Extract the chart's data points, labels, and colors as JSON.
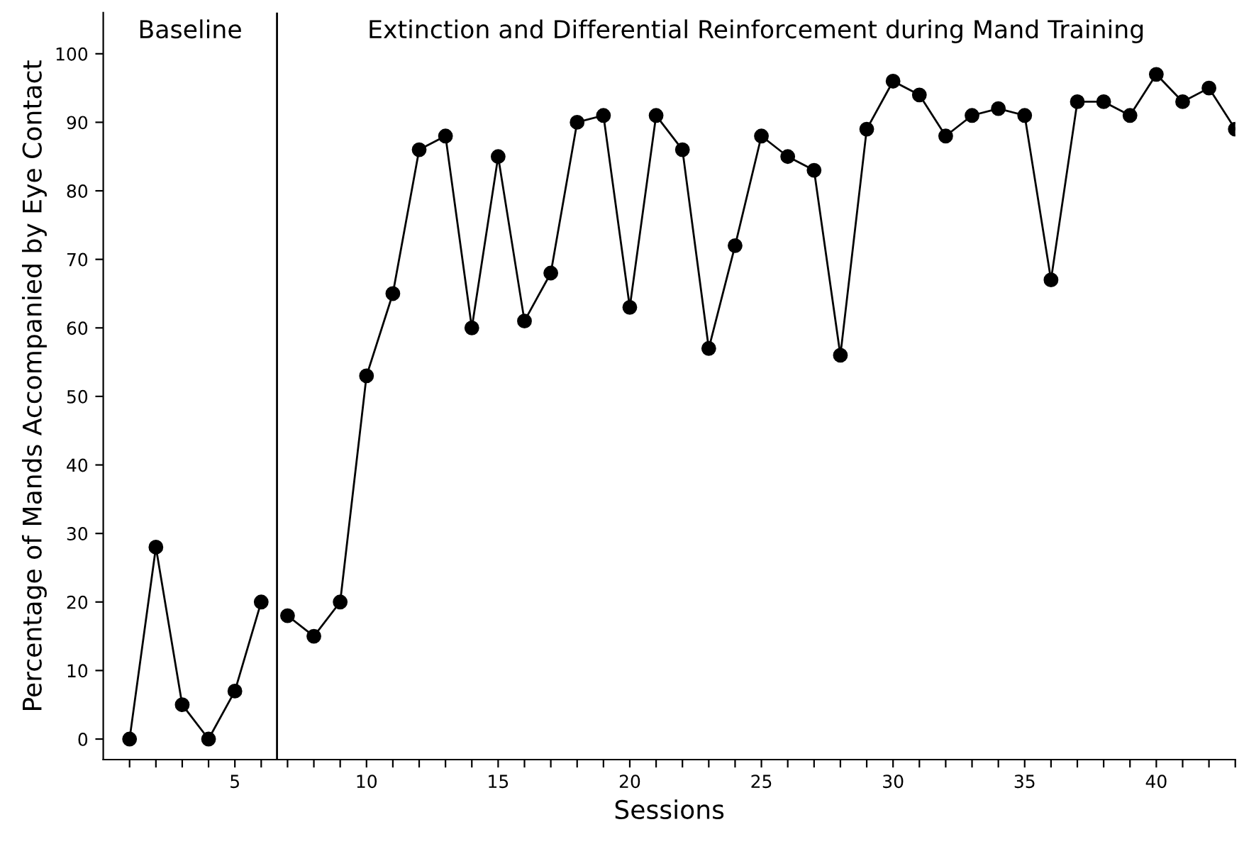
{
  "chart_data": {
    "type": "line",
    "xlabel": "Sessions",
    "ylabel": "Percentage of Mands Accompanied by Eye Contact",
    "series": [
      {
        "color": "#000000",
        "x": [
          1,
          2,
          3,
          4,
          5,
          6
        ],
        "values": [
          0,
          28,
          5,
          0,
          7,
          20
        ]
      },
      {
        "color": "#000000",
        "x": [
          7,
          8,
          9,
          10,
          11,
          12,
          13,
          14,
          15,
          16,
          17,
          18,
          19,
          20,
          21,
          22,
          23,
          24,
          25,
          26,
          27,
          28,
          29,
          30,
          31,
          32,
          33,
          34,
          35,
          36,
          37,
          38,
          39,
          40,
          41,
          42,
          43
        ],
        "values": [
          18,
          15,
          20,
          53,
          65,
          86,
          88,
          60,
          85,
          61,
          68,
          90,
          91,
          63,
          91,
          86,
          57,
          72,
          88,
          85,
          83,
          56,
          89,
          96,
          94,
          88,
          91,
          92,
          91,
          67,
          93,
          93,
          91,
          97,
          93,
          95,
          89
        ]
      }
    ],
    "marker": "circle",
    "line_style": "solid",
    "grid": false,
    "legend": false,
    "xlim": [
      0,
      43
    ],
    "ylim": [
      -3,
      106
    ],
    "xticks": [
      {
        "value": 1,
        "label": null
      },
      {
        "value": 2,
        "label": null
      },
      {
        "value": 3,
        "label": null
      },
      {
        "value": 4,
        "label": null
      },
      5,
      {
        "value": 6,
        "label": null
      },
      {
        "value": 7,
        "label": null
      },
      {
        "value": 8,
        "label": null
      },
      {
        "value": 9,
        "label": null
      },
      10,
      {
        "value": 11,
        "label": null
      },
      {
        "value": 12,
        "label": null
      },
      {
        "value": 13,
        "label": null
      },
      {
        "value": 14,
        "label": null
      },
      15,
      {
        "value": 16,
        "label": null
      },
      {
        "value": 17,
        "label": null
      },
      {
        "value": 18,
        "label": null
      },
      {
        "value": 19,
        "label": null
      },
      20,
      {
        "value": 21,
        "label": null
      },
      {
        "value": 22,
        "label": null
      },
      {
        "value": 23,
        "label": null
      },
      {
        "value": 24,
        "label": null
      },
      25,
      {
        "value": 26,
        "label": null
      },
      {
        "value": 27,
        "label": null
      },
      {
        "value": 28,
        "label": null
      },
      {
        "value": 29,
        "label": null
      },
      30,
      {
        "value": 31,
        "label": null
      },
      {
        "value": 32,
        "label": null
      },
      {
        "value": 33,
        "label": null
      },
      {
        "value": 34,
        "label": null
      },
      35,
      {
        "value": 36,
        "label": null
      },
      {
        "value": 37,
        "label": null
      },
      {
        "value": 38,
        "label": null
      },
      {
        "value": 39,
        "label": null
      },
      40,
      {
        "value": 41,
        "label": null
      },
      {
        "value": 42,
        "label": null
      },
      {
        "value": 43,
        "label": null
      }
    ],
    "yticks": [
      0,
      10,
      20,
      30,
      40,
      50,
      60,
      70,
      80,
      90,
      100
    ],
    "ref_lines": [
      {
        "axis": "x",
        "value": 6.6,
        "color": "#000000",
        "line_style": "solid"
      }
    ],
    "annotations": [
      "Baseline",
      "Extinction and Differential Reinforcement during Mand Training"
    ]
  }
}
